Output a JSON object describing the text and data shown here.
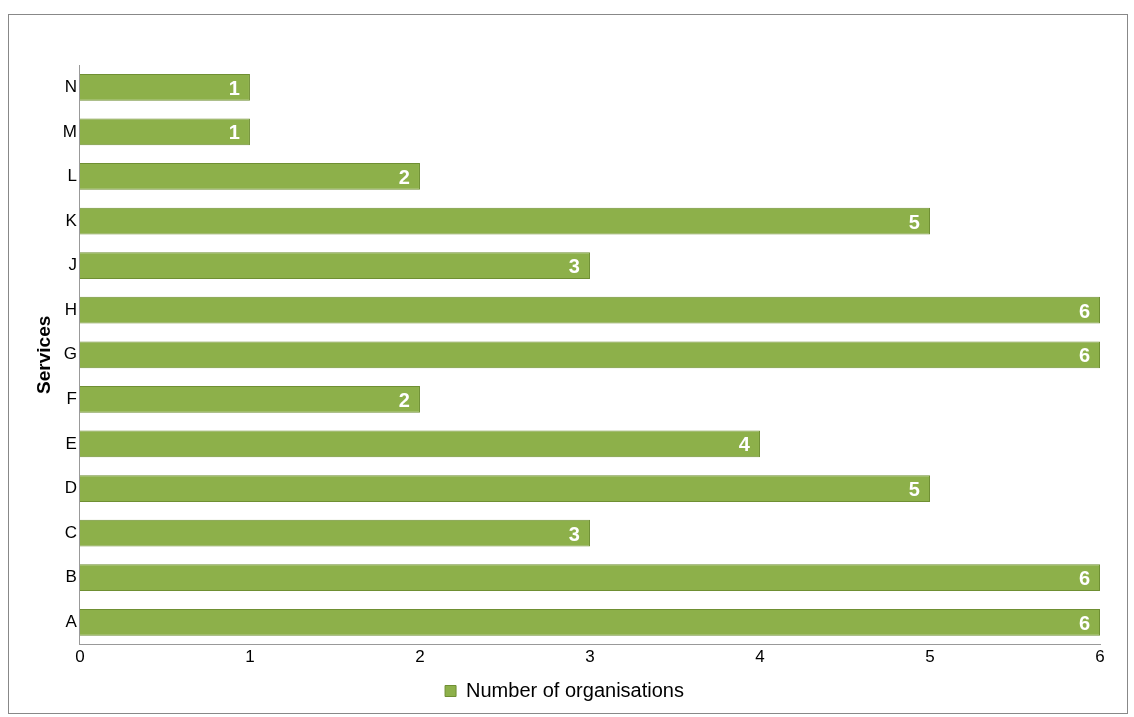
{
  "chart_data": {
    "type": "bar",
    "orientation": "horizontal",
    "ylabel": "Services",
    "categories": [
      "N",
      "M",
      "L",
      "K",
      "J",
      "H",
      "G",
      "F",
      "E",
      "D",
      "C",
      "B",
      "A"
    ],
    "series": [
      {
        "name": "Number of organisations",
        "color": "#8db04a",
        "values": [
          1,
          1,
          2,
          5,
          3,
          6,
          6,
          2,
          4,
          5,
          3,
          6,
          6
        ]
      }
    ],
    "xlim": [
      0,
      6
    ],
    "xticks": [
      0,
      1,
      2,
      3,
      4,
      5,
      6
    ],
    "data_labels": true,
    "legend": "bottom",
    "grid": false
  }
}
